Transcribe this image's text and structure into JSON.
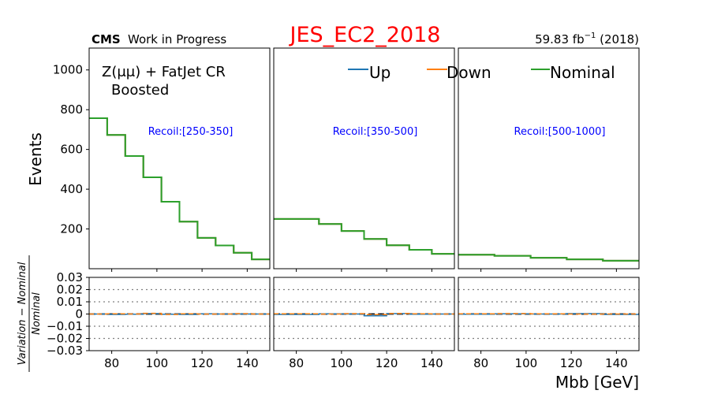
{
  "header": {
    "experiment": "CMS",
    "status": "Work in Progress",
    "title": "JES_EC2_2018",
    "lumi_value": "59.83 fb",
    "lumi_exp": "−1",
    "lumi_year": " (2018)",
    "title_color": "#ff0000"
  },
  "chart_data": {
    "type": "line",
    "region_label": "Z(μμ) + FatJet CR",
    "region_sub": "Boosted",
    "ylabel": "Events",
    "ratio_ylabel_num": "Variation − Nominal",
    "ratio_ylabel_den": "Nominal",
    "xlabel": "Mbb [GeV]",
    "legend": [
      {
        "name": "Up",
        "color": "#1f77b4"
      },
      {
        "name": "Down",
        "color": "#ff7f0e"
      },
      {
        "name": "Nominal",
        "color": "#2ca02c"
      }
    ],
    "xlim": [
      70,
      150
    ],
    "ylim": [
      0,
      1110
    ],
    "ratio_ylim": [
      -0.03,
      0.03
    ],
    "y_ticks": [
      "200",
      "400",
      "600",
      "800",
      "1000"
    ],
    "ratio_ticks": [
      "−0.03",
      "−0.02",
      "−0.01",
      "0",
      "0.01",
      "0.02",
      "0.03"
    ],
    "x_ticks": [
      "80",
      "100",
      "120",
      "140"
    ],
    "panels": [
      {
        "label": "Recoil:[250-350]",
        "edges": [
          70,
          78,
          86,
          94,
          102,
          110,
          118,
          126,
          134,
          142,
          150
        ],
        "nominal": [
          757,
          673,
          567,
          460,
          337,
          237,
          155,
          117,
          80,
          47
        ],
        "ratio_up": [
          0,
          -0.0003,
          -0.0002,
          0.0003,
          -0.0002,
          -0.0003,
          0.0002,
          0,
          0,
          0
        ],
        "ratio_down": [
          0,
          0.0002,
          0,
          0.0006,
          -0.0004,
          0.0002,
          0,
          0,
          0.0003,
          0
        ]
      },
      {
        "label": "Recoil:[350-500]",
        "edges": [
          70,
          90,
          100,
          110,
          120,
          130,
          140,
          150
        ],
        "nominal": [
          250,
          225,
          190,
          150,
          118,
          95,
          75
        ],
        "ratio_up": [
          -0.0003,
          0.0002,
          0,
          -0.0015,
          0.0003,
          -0.0002,
          0
        ],
        "ratio_down": [
          0.0002,
          0,
          0.0003,
          -0.0005,
          0.0005,
          0.0002,
          0
        ]
      },
      {
        "label": "Recoil:[500-1000]",
        "edges": [
          70,
          86,
          102,
          118,
          134,
          150
        ],
        "nominal": [
          70,
          65,
          55,
          47,
          40
        ],
        "ratio_up": [
          -0.0002,
          0.0002,
          0,
          0.0003,
          -0.0003
        ],
        "ratio_down": [
          0.0002,
          0.0004,
          0.0002,
          0,
          0
        ]
      }
    ]
  }
}
